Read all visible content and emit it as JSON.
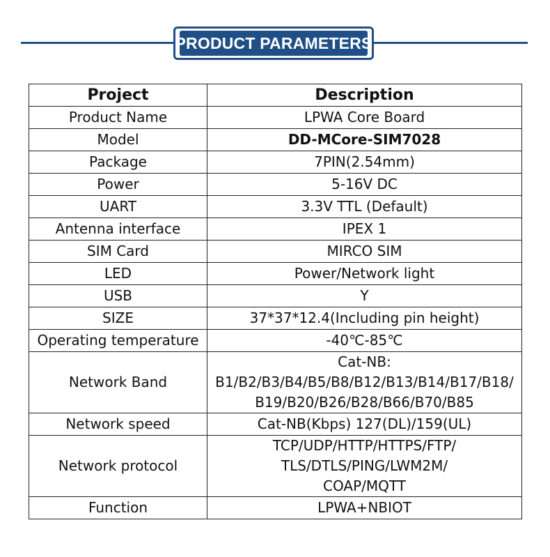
{
  "header": {
    "title": "PRODUCT PARAMETERS",
    "accent_color": "#1f4f86"
  },
  "table": {
    "headers": {
      "project": "Project",
      "description": "Description"
    },
    "rows": [
      {
        "project": "Product Name",
        "description": [
          "LPWA  Core Board"
        ]
      },
      {
        "project": "Model",
        "description": [
          "DD-MCore-SIM7028"
        ]
      },
      {
        "project": "Package",
        "description": [
          "7PIN(2.54mm)"
        ]
      },
      {
        "project": "Power",
        "description": [
          "5-16V DC"
        ]
      },
      {
        "project": "UART",
        "description": [
          "3.3V TTL (Default)"
        ]
      },
      {
        "project": "Antenna interface",
        "description": [
          "IPEX 1"
        ]
      },
      {
        "project": "SIM Card",
        "description": [
          "MIRCO SIM"
        ]
      },
      {
        "project": "LED",
        "description": [
          "Power/Network light"
        ]
      },
      {
        "project": "USB",
        "description": [
          "Y"
        ]
      },
      {
        "project": "SIZE",
        "description": [
          "37*37*12.4(Including pin height)"
        ]
      },
      {
        "project": "Operating temperature",
        "description": [
          "-40℃-85℃"
        ]
      },
      {
        "project": "Network Band",
        "description": [
          "Cat-NB:",
          "B1/B2/B3/B4/B5/B8/B12/B13/B14/B17/B18/",
          "B19/B20/B26/B28/B66/B70/B85"
        ]
      },
      {
        "project": "Network speed",
        "description": [
          "Cat-NB(Kbps) 127(DL)/159(UL)"
        ]
      },
      {
        "project": "Network protocol",
        "description": [
          "TCP/UDP/HTTP/HTTPS/FTP/",
          "TLS/DTLS/PING/LWM2M/",
          "COAP/MQTT"
        ]
      },
      {
        "project": "Function",
        "description": [
          "LPWA+NBIOT"
        ]
      }
    ]
  }
}
